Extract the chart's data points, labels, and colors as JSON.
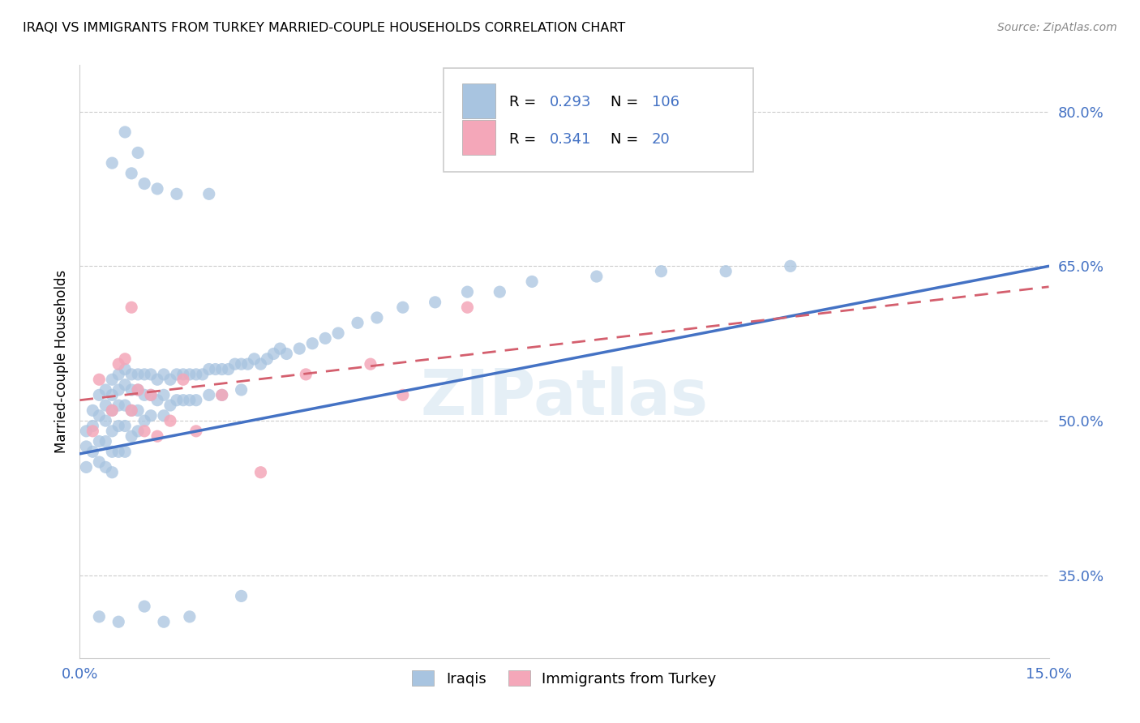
{
  "title": "IRAQI VS IMMIGRANTS FROM TURKEY MARRIED-COUPLE HOUSEHOLDS CORRELATION CHART",
  "source": "Source: ZipAtlas.com",
  "ylabel": "Married-couple Households",
  "yticks": [
    0.35,
    0.5,
    0.65,
    0.8
  ],
  "ytick_labels": [
    "35.0%",
    "50.0%",
    "65.0%",
    "80.0%"
  ],
  "xmin": 0.0,
  "xmax": 0.15,
  "ymin": 0.27,
  "ymax": 0.845,
  "iraqis_color": "#a8c4e0",
  "turkey_color": "#f4a7b9",
  "iraqis_line_color": "#4472c4",
  "turkey_line_color": "#d45f6e",
  "R_iraqis": "0.293",
  "N_iraqis": "106",
  "R_turkey": "0.341",
  "N_turkey": "20",
  "watermark": "ZIPatlas",
  "blue_line_y0": 0.468,
  "blue_line_y1": 0.65,
  "pink_line_y0": 0.52,
  "pink_line_y1": 0.63,
  "iraqis_x": [
    0.001,
    0.001,
    0.001,
    0.002,
    0.002,
    0.002,
    0.003,
    0.003,
    0.003,
    0.003,
    0.004,
    0.004,
    0.004,
    0.004,
    0.004,
    0.005,
    0.005,
    0.005,
    0.005,
    0.005,
    0.005,
    0.006,
    0.006,
    0.006,
    0.006,
    0.006,
    0.007,
    0.007,
    0.007,
    0.007,
    0.007,
    0.008,
    0.008,
    0.008,
    0.008,
    0.009,
    0.009,
    0.009,
    0.009,
    0.01,
    0.01,
    0.01,
    0.011,
    0.011,
    0.011,
    0.012,
    0.012,
    0.013,
    0.013,
    0.013,
    0.014,
    0.014,
    0.015,
    0.015,
    0.016,
    0.016,
    0.017,
    0.017,
    0.018,
    0.018,
    0.019,
    0.02,
    0.02,
    0.021,
    0.022,
    0.022,
    0.023,
    0.024,
    0.025,
    0.025,
    0.026,
    0.027,
    0.028,
    0.029,
    0.03,
    0.031,
    0.032,
    0.034,
    0.036,
    0.038,
    0.04,
    0.043,
    0.046,
    0.05,
    0.055,
    0.06,
    0.065,
    0.07,
    0.08,
    0.09,
    0.1,
    0.11,
    0.005,
    0.008,
    0.01,
    0.012,
    0.015,
    0.007,
    0.009,
    0.02,
    0.003,
    0.006,
    0.01,
    0.013,
    0.017,
    0.025
  ],
  "iraqis_y": [
    0.49,
    0.475,
    0.455,
    0.51,
    0.495,
    0.47,
    0.525,
    0.505,
    0.48,
    0.46,
    0.53,
    0.515,
    0.5,
    0.48,
    0.455,
    0.54,
    0.525,
    0.51,
    0.49,
    0.47,
    0.45,
    0.545,
    0.53,
    0.515,
    0.495,
    0.47,
    0.55,
    0.535,
    0.515,
    0.495,
    0.47,
    0.545,
    0.53,
    0.51,
    0.485,
    0.545,
    0.53,
    0.51,
    0.49,
    0.545,
    0.525,
    0.5,
    0.545,
    0.525,
    0.505,
    0.54,
    0.52,
    0.545,
    0.525,
    0.505,
    0.54,
    0.515,
    0.545,
    0.52,
    0.545,
    0.52,
    0.545,
    0.52,
    0.545,
    0.52,
    0.545,
    0.55,
    0.525,
    0.55,
    0.55,
    0.525,
    0.55,
    0.555,
    0.555,
    0.53,
    0.555,
    0.56,
    0.555,
    0.56,
    0.565,
    0.57,
    0.565,
    0.57,
    0.575,
    0.58,
    0.585,
    0.595,
    0.6,
    0.61,
    0.615,
    0.625,
    0.625,
    0.635,
    0.64,
    0.645,
    0.645,
    0.65,
    0.75,
    0.74,
    0.73,
    0.725,
    0.72,
    0.78,
    0.76,
    0.72,
    0.31,
    0.305,
    0.32,
    0.305,
    0.31,
    0.33
  ],
  "turkey_x": [
    0.002,
    0.003,
    0.005,
    0.006,
    0.007,
    0.008,
    0.009,
    0.01,
    0.011,
    0.012,
    0.014,
    0.016,
    0.018,
    0.022,
    0.028,
    0.035,
    0.045,
    0.06,
    0.05,
    0.008
  ],
  "turkey_y": [
    0.49,
    0.54,
    0.51,
    0.555,
    0.56,
    0.51,
    0.53,
    0.49,
    0.525,
    0.485,
    0.5,
    0.54,
    0.49,
    0.525,
    0.45,
    0.545,
    0.555,
    0.61,
    0.525,
    0.61
  ],
  "legend_iraqis_color": "#a8c4e0",
  "legend_turkey_color": "#f4a7b9"
}
